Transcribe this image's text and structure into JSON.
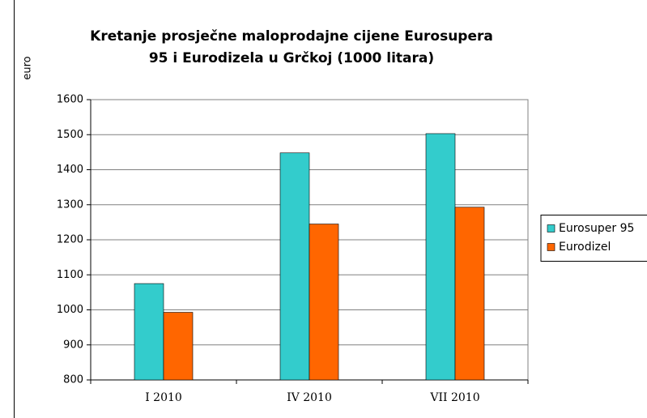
{
  "chart_data": {
    "type": "bar",
    "title": [
      "Kretanje prosječne maloprodajne cijene Eurosupera",
      "95 i Eurodizela u Grčkoj (1000 litara)"
    ],
    "y_label": "euro",
    "categories": [
      "I 2010",
      "IV 2010",
      "VII 2010"
    ],
    "series": [
      {
        "name": "Eurosuper 95",
        "color": "#33cccc",
        "values": [
          1075,
          1448,
          1503
        ]
      },
      {
        "name": "Eurodizel",
        "color": "#ff6600",
        "values": [
          993,
          1245,
          1293
        ]
      }
    ],
    "ylim": [
      800,
      1600
    ],
    "yticks": [
      800,
      900,
      1000,
      1100,
      1200,
      1300,
      1400,
      1500,
      1600
    ],
    "grid": true,
    "legend": "right"
  }
}
